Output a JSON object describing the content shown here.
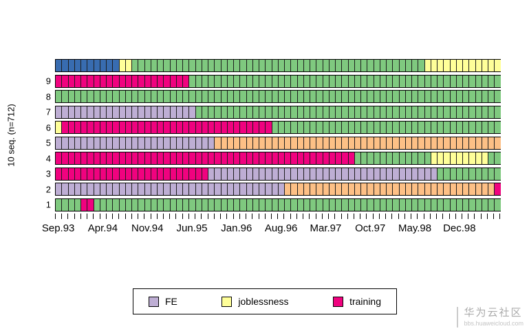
{
  "watermark": {
    "title": "华为云社区",
    "subtitle": "bbs.huaweicloud.com"
  },
  "chart_data": {
    "type": "heatmap",
    "subtype": "sequence-index-plot",
    "title": "",
    "xlabel": "",
    "ylabel": "10 seq. (n=712)",
    "n_months": 70,
    "x_tick_labels": [
      "Sep.93",
      "Apr.94",
      "Nov.94",
      "Jun.95",
      "Jan.96",
      "Aug.96",
      "Mar.97",
      "Oct.97",
      "May.98",
      "Dec.98"
    ],
    "x_tick_label_interval": 7,
    "y_tick_labels": [
      "1",
      "2",
      "3",
      "4",
      "5",
      "6",
      "7",
      "8",
      "9"
    ],
    "grid": false,
    "legend_position": "bottom-center",
    "states": {
      "employment": "#7FC97F",
      "FE": "#BEAED4",
      "HE": "#FDC086",
      "joblessness": "#FFFF99",
      "school": "#386CB0",
      "training": "#F0027F"
    },
    "sequences": [
      {
        "id": 1,
        "segments": [
          [
            "employment",
            4
          ],
          [
            "training",
            2
          ],
          [
            "employment",
            64
          ]
        ]
      },
      {
        "id": 2,
        "segments": [
          [
            "FE",
            36
          ],
          [
            "HE",
            33
          ],
          [
            "training",
            1
          ]
        ]
      },
      {
        "id": 3,
        "segments": [
          [
            "training",
            24
          ],
          [
            "FE",
            36
          ],
          [
            "employment",
            10
          ]
        ]
      },
      {
        "id": 4,
        "segments": [
          [
            "training",
            47
          ],
          [
            "employment",
            12
          ],
          [
            "joblessness",
            9
          ],
          [
            "employment",
            2
          ]
        ]
      },
      {
        "id": 5,
        "segments": [
          [
            "FE",
            25
          ],
          [
            "HE",
            45
          ]
        ]
      },
      {
        "id": 6,
        "segments": [
          [
            "joblessness",
            1
          ],
          [
            "training",
            33
          ],
          [
            "employment",
            36
          ]
        ]
      },
      {
        "id": 7,
        "segments": [
          [
            "FE",
            22
          ],
          [
            "employment",
            48
          ]
        ]
      },
      {
        "id": 8,
        "segments": [
          [
            "employment",
            70
          ]
        ]
      },
      {
        "id": 9,
        "segments": [
          [
            "training",
            21
          ],
          [
            "employment",
            49
          ]
        ]
      },
      {
        "id": 10,
        "segments": [
          [
            "school",
            10
          ],
          [
            "joblessness",
            2
          ],
          [
            "employment",
            46
          ],
          [
            "joblessness",
            12
          ]
        ]
      }
    ],
    "legend": [
      {
        "label": "FE",
        "color": "#BEAED4"
      },
      {
        "label": "joblessness",
        "color": "#FFFF99"
      },
      {
        "label": "training",
        "color": "#F0027F"
      }
    ]
  }
}
